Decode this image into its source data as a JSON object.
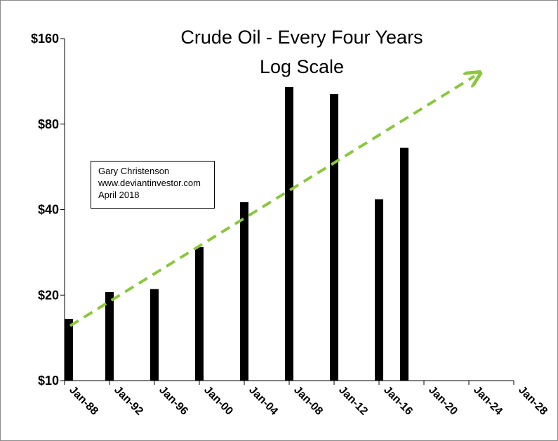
{
  "chart_data": {
    "type": "bar",
    "title": "Crude Oil - Every Four Years",
    "subtitle": "Log Scale",
    "y_scale": "log",
    "ylim": [
      10,
      160
    ],
    "y_ticks": [
      10,
      20,
      40,
      80,
      160
    ],
    "y_tick_labels": [
      "$10",
      "$20",
      "$40",
      "$80",
      "$160"
    ],
    "x_tick_labels": [
      "Jan-88",
      "Jan-92",
      "Jan-96",
      "Jan-00",
      "Jan-04",
      "Jan-08",
      "Jan-12",
      "Jan-16",
      "Jan-20",
      "Jan-24",
      "Jan-28"
    ],
    "x_tick_dates": [
      1988.0,
      1992.0,
      1996.0,
      2000.0,
      2004.0,
      2008.0,
      2012.0,
      2016.0,
      2020.0,
      2024.0,
      2028.0
    ],
    "xlim": [
      1988.0,
      2028.0
    ],
    "bars": [
      {
        "x": "Jan-88",
        "value": 16.5
      },
      {
        "x": "Jan-92",
        "value": 20.5
      },
      {
        "x": "Jan-96",
        "value": 21.0
      },
      {
        "x": "Jan-00",
        "value": 29.5
      },
      {
        "x": "Jan-04",
        "value": 42.5
      },
      {
        "x": "Jan-08",
        "value": 108.0
      },
      {
        "x": "Jan-12",
        "value": 102.0
      },
      {
        "x": "Jan-16",
        "value": 43.5
      },
      {
        "x": "Apr-18",
        "value": 66.0
      }
    ],
    "bar_dates": [
      1988.0,
      1992.0,
      1996.0,
      2000.0,
      2004.0,
      2008.0,
      2012.0,
      2016.0,
      2018.25
    ],
    "trend_line": {
      "style": "dashed arrow",
      "color": "#8cc63f",
      "start": {
        "x": 1988.5,
        "y": 15.6
      },
      "end": {
        "x": 2024.5,
        "y": 118.0
      }
    },
    "grid": false,
    "bar_color": "#000000"
  },
  "annotation": {
    "line1": "Gary Christenson",
    "line2": "www.deviantinvestor.com",
    "line3": "April 2018"
  }
}
